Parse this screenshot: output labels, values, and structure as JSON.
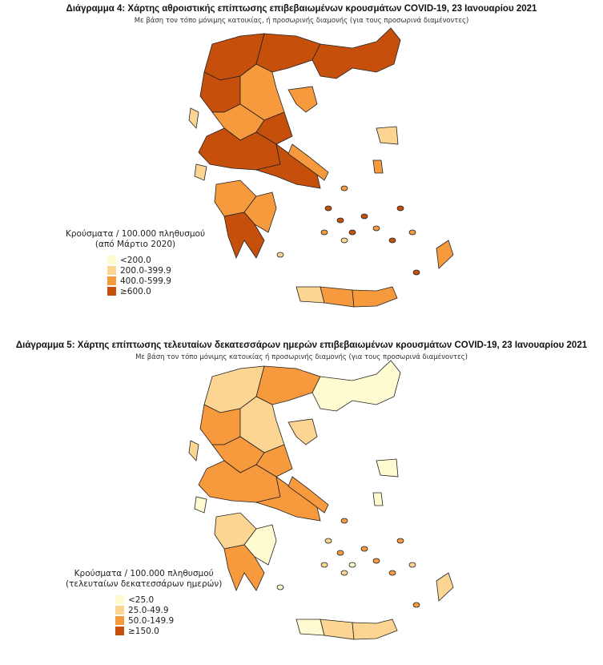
{
  "map4": {
    "title": "Διάγραμμα 4: Χάρτης αθροιστικής επίπτωσης επιβεβαιωμένων κρουσμάτων COVID-19, 23 Ιανουαρίου 2021",
    "subtitle": "Με βάση τον τόπο μόνιμης κατοικίας, ή προσωρινής διαμονής (για τους προσωρινά διαμένοντες)",
    "legend_title": "Κρούσματα / 100.000 πληθυσμού",
    "legend_subtitle": "(από Μάρτιο 2020)",
    "legend": [
      {
        "label": "<200.0",
        "color": "#fffbd0"
      },
      {
        "label": "200.0-399.9",
        "color": "#fdd593"
      },
      {
        "label": "400.0-599.9",
        "color": "#f7993d"
      },
      {
        "label": "≥600.0",
        "color": "#c64f0c"
      }
    ],
    "region_levels": [
      3,
      3,
      3,
      3,
      2,
      1,
      2,
      3,
      2,
      3,
      3,
      2,
      1,
      2,
      2,
      3,
      1,
      2,
      2,
      1,
      2,
      2
    ]
  },
  "map5": {
    "title": "Διάγραμμα 5: Χάρτης επίπτωσης τελευταίων δεκατεσσάρων ημερών επιβεβαιωμένων κρουσμάτων COVID-19, 23 Ιανουαρίου 2021",
    "subtitle": "Με βάση τον τόπο μόνιμης κατοικίας ή προσωρινής διαμονής (για τους προσωρινά διαμένοντες)",
    "legend_title": "Κρούσματα / 100.000 πληθυσμού",
    "legend_subtitle": "(τελευταίων δεκατεσσάρων ημερών)",
    "legend": [
      {
        "label": "<25.0",
        "color": "#fffbd0"
      },
      {
        "label": "25.0-49.9",
        "color": "#fdd593"
      },
      {
        "label": "50.0-149.9",
        "color": "#f7993d"
      },
      {
        "label": "≥150.0",
        "color": "#c64f0c"
      }
    ],
    "region_levels": [
      1,
      2,
      0,
      2,
      1,
      1,
      2,
      2,
      1,
      2,
      2,
      2,
      0,
      1,
      0,
      2,
      0,
      1,
      1,
      0,
      0,
      1
    ]
  }
}
